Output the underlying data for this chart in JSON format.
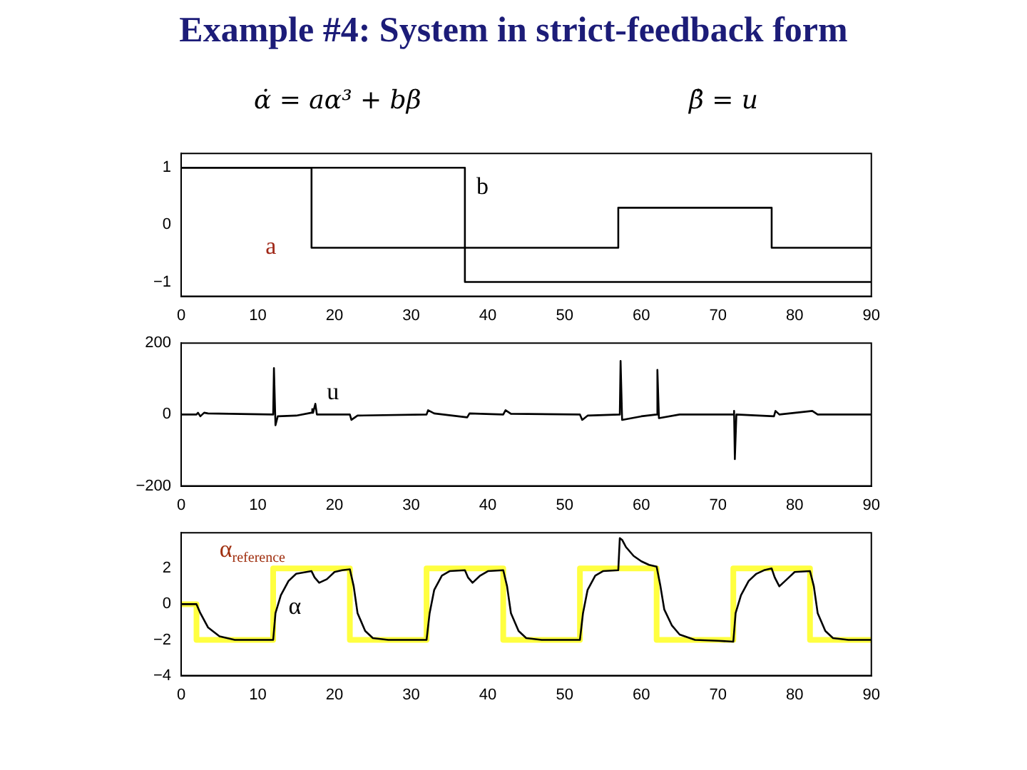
{
  "chart_data": [
    {
      "type": "line",
      "title": "Example #4: System in strict-feedback form",
      "annotations": [
        "α̇ = aα³ + bβ",
        "β̇ = u"
      ],
      "xlim": [
        0,
        90
      ],
      "xticks": [
        0,
        10,
        20,
        30,
        40,
        50,
        60,
        70,
        80,
        90
      ],
      "ylim": [
        -1.25,
        1.25
      ],
      "yticks": [
        -1,
        0,
        1
      ],
      "grid": false,
      "legend": false,
      "marker": "none",
      "series": [
        {
          "name": "a",
          "type": "step",
          "color": "#000000",
          "x": [
            0,
            17,
            57,
            77,
            90
          ],
          "values": [
            1,
            -0.4,
            0.3,
            -0.4,
            -0.4
          ]
        },
        {
          "name": "b",
          "type": "step",
          "color": "#000000",
          "x": [
            0,
            37,
            90
          ],
          "values": [
            1,
            -1,
            -1
          ]
        }
      ]
    },
    {
      "type": "line",
      "xlim": [
        0,
        90
      ],
      "xticks": [
        0,
        10,
        20,
        30,
        40,
        50,
        60,
        70,
        80,
        90
      ],
      "ylim": [
        -200,
        200
      ],
      "yticks": [
        -200,
        0,
        200
      ],
      "grid": false,
      "legend": false,
      "marker": "none",
      "series": [
        {
          "name": "u",
          "type": "line",
          "color": "#000000",
          "x": [
            0,
            2,
            2.2,
            2.5,
            3,
            3.5,
            12,
            12.1,
            12.3,
            12.6,
            15,
            17,
            17.1,
            17.2,
            17.5,
            17.7,
            22,
            22.2,
            23,
            32,
            32.2,
            33,
            37.3,
            37.6,
            42,
            42.3,
            43,
            52,
            52.3,
            53,
            57.2,
            57.3,
            57.5,
            60,
            62,
            62.1,
            62.3,
            65,
            72,
            72.1,
            72.2,
            72.4,
            77.3,
            77.5,
            78,
            82.3,
            83,
            90
          ],
          "values": [
            0,
            0,
            5,
            -5,
            5,
            3,
            0,
            130,
            -30,
            -5,
            -3,
            5,
            15,
            5,
            30,
            0,
            0,
            -15,
            -3,
            0,
            12,
            3,
            -8,
            3,
            0,
            12,
            2,
            0,
            -15,
            -3,
            0,
            150,
            -15,
            -5,
            0,
            125,
            -10,
            0,
            0,
            10,
            -125,
            0,
            -5,
            10,
            0,
            10,
            0,
            0
          ]
        }
      ]
    },
    {
      "type": "line",
      "xlim": [
        0,
        90
      ],
      "xticks": [
        0,
        10,
        20,
        30,
        40,
        50,
        60,
        70,
        80,
        90
      ],
      "ylim": [
        -4,
        4
      ],
      "yticks": [
        -4,
        -2,
        0,
        2
      ],
      "grid": false,
      "legend": false,
      "marker": "none",
      "series": [
        {
          "name": "α$_{reference}$",
          "type": "step",
          "color": "#ffff40",
          "x": [
            0,
            2,
            12,
            22,
            32,
            42,
            52,
            62,
            72,
            82,
            90
          ],
          "values": [
            0,
            -2,
            2,
            -2,
            2,
            -2,
            2,
            -2,
            2,
            -2,
            -2
          ]
        },
        {
          "name": "α",
          "type": "line",
          "color": "#000000",
          "x": [
            0,
            2,
            2.5,
            3.5,
            5,
            7,
            12,
            12.3,
            13,
            14,
            15,
            17,
            17.4,
            18,
            19,
            20,
            21,
            22,
            22.5,
            23,
            24,
            25,
            27,
            32,
            32.4,
            33,
            34,
            35,
            37,
            37.4,
            38,
            39,
            40,
            42,
            42.5,
            43,
            44,
            45,
            47,
            52,
            52.4,
            53,
            54,
            55,
            57,
            57.2,
            57.5,
            58,
            59,
            60,
            61,
            62,
            62.5,
            63,
            64,
            65,
            67,
            70,
            72,
            72.3,
            73,
            74,
            75,
            76,
            77,
            77.4,
            78,
            79,
            80,
            82,
            82.5,
            83,
            84,
            85,
            87,
            90
          ],
          "values": [
            0,
            0,
            -0.5,
            -1.3,
            -1.8,
            -2,
            -2,
            -0.5,
            0.5,
            1.3,
            1.7,
            1.85,
            1.5,
            1.2,
            1.4,
            1.8,
            1.9,
            1.95,
            1,
            -0.5,
            -1.5,
            -1.9,
            -2,
            -2,
            -0.5,
            0.8,
            1.6,
            1.85,
            1.9,
            1.5,
            1.2,
            1.6,
            1.85,
            1.9,
            1,
            -0.5,
            -1.5,
            -1.9,
            -2,
            -2,
            -0.5,
            0.8,
            1.6,
            1.85,
            1.9,
            3.7,
            3.6,
            3.2,
            2.7,
            2.4,
            2.2,
            2.1,
            1,
            -0.3,
            -1.2,
            -1.7,
            -2,
            -2.05,
            -2.1,
            -0.5,
            0.5,
            1.3,
            1.7,
            1.9,
            2,
            1.5,
            1,
            1.4,
            1.8,
            1.85,
            1,
            -0.5,
            -1.5,
            -1.9,
            -2,
            -2
          ]
        }
      ]
    }
  ]
}
